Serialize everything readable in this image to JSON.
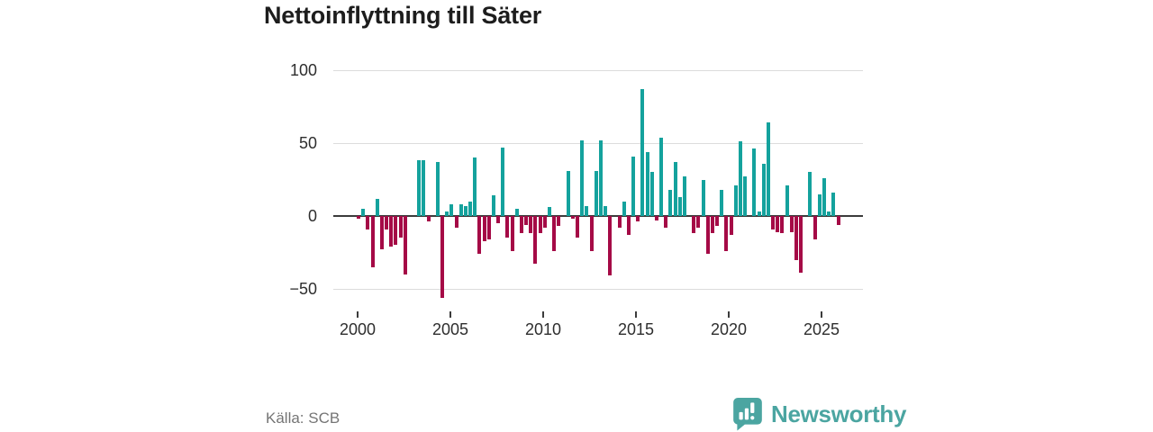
{
  "title": "Nettoinflyttning till Säter",
  "source": "Källa: SCB",
  "brand": {
    "name": "Newsworthy",
    "color": "#4BA5A1"
  },
  "colors": {
    "positive": "#14A29D",
    "negative": "#A50A46",
    "grid": "#DCDCDC",
    "zero_axis": "#3C3C3C",
    "axis_text": "#2E2E2E",
    "muted_text": "#757575"
  },
  "chart_data": {
    "type": "bar",
    "title": "Nettoinflyttning till Säter",
    "period": "quarterly",
    "xlabel": "",
    "ylabel": "",
    "ylim": [
      -60,
      100
    ],
    "yticks": [
      100,
      50,
      0,
      -50
    ],
    "ytick_labels": [
      "100",
      "50",
      "0",
      "−50"
    ],
    "xticks": [
      2000,
      2005,
      2010,
      2015,
      2020,
      2025
    ],
    "grid": true,
    "legend": false,
    "series": [
      {
        "year": 2000,
        "q": [
          -2,
          5,
          -9,
          -35
        ]
      },
      {
        "year": 2001,
        "q": [
          12,
          -23,
          -9,
          -21
        ]
      },
      {
        "year": 2002,
        "q": [
          -20,
          -15,
          -40,
          0
        ]
      },
      {
        "year": 2003,
        "q": [
          0,
          38,
          38,
          -4
        ]
      },
      {
        "year": 2004,
        "q": [
          0,
          37,
          -56,
          3
        ]
      },
      {
        "year": 2005,
        "q": [
          8,
          -8,
          8,
          7
        ]
      },
      {
        "year": 2006,
        "q": [
          10,
          40,
          -26,
          -17
        ]
      },
      {
        "year": 2007,
        "q": [
          -16,
          14,
          -5,
          47
        ]
      },
      {
        "year": 2008,
        "q": [
          -15,
          -24,
          5,
          -12
        ]
      },
      {
        "year": 2009,
        "q": [
          -6,
          -12,
          -33,
          -12
        ]
      },
      {
        "year": 2010,
        "q": [
          -8,
          6,
          -24,
          -7
        ]
      },
      {
        "year": 2011,
        "q": [
          0,
          31,
          -2,
          -15
        ]
      },
      {
        "year": 2012,
        "q": [
          52,
          7,
          -24,
          31
        ]
      },
      {
        "year": 2013,
        "q": [
          52,
          7,
          -41,
          0
        ]
      },
      {
        "year": 2014,
        "q": [
          -8,
          10,
          -13,
          41
        ]
      },
      {
        "year": 2015,
        "q": [
          -4,
          87,
          44,
          30
        ]
      },
      {
        "year": 2016,
        "q": [
          -3,
          54,
          -8,
          18
        ]
      },
      {
        "year": 2017,
        "q": [
          37,
          13,
          27,
          0
        ]
      },
      {
        "year": 2018,
        "q": [
          -12,
          -8,
          25,
          -26
        ]
      },
      {
        "year": 2019,
        "q": [
          -12,
          -7,
          18,
          -24
        ]
      },
      {
        "year": 2020,
        "q": [
          -13,
          21,
          51,
          27
        ]
      },
      {
        "year": 2021,
        "q": [
          0,
          46,
          3,
          36
        ]
      },
      {
        "year": 2022,
        "q": [
          64,
          -9,
          -11,
          -12
        ]
      },
      {
        "year": 2023,
        "q": [
          21,
          -11,
          -30,
          -39
        ]
      },
      {
        "year": 2024,
        "q": [
          0,
          30,
          -16,
          15
        ]
      },
      {
        "year": 2025,
        "q": [
          26,
          3,
          16,
          -6
        ]
      }
    ]
  }
}
